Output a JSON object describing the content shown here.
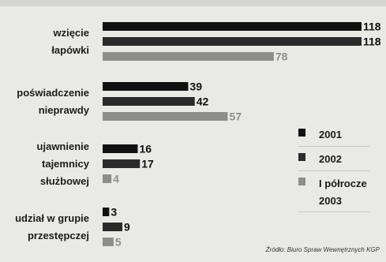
{
  "chart_data": {
    "type": "bar",
    "orientation": "horizontal",
    "categories": [
      [
        "wzięcie",
        "łapówki"
      ],
      [
        "poświadczenie",
        "nieprawdy"
      ],
      [
        "ujawnienie",
        "tajemnicy",
        "służbowej"
      ],
      [
        "udział w grupie",
        "przestępczej"
      ]
    ],
    "series": [
      {
        "name": "2001",
        "color": "#111111",
        "values": [
          118,
          39,
          16,
          3
        ]
      },
      {
        "name": "2002",
        "color": "#2b2b2b",
        "values": [
          118,
          42,
          17,
          9
        ]
      },
      {
        "name": "I półrocze 2003",
        "color": "#8d8d8a",
        "values": [
          78,
          57,
          4,
          5
        ]
      }
    ],
    "xlim": [
      0,
      118
    ],
    "grid": false,
    "legend_position": "right"
  },
  "legend": {
    "items": [
      {
        "label": "2001",
        "color": "#111111"
      },
      {
        "label": "2002",
        "color": "#2b2b2b"
      },
      {
        "label": "I półrocze 2003",
        "color": "#8d8d8a"
      }
    ]
  },
  "source": "Źródło: Biuro Spraw Wewnętrznych KGP"
}
